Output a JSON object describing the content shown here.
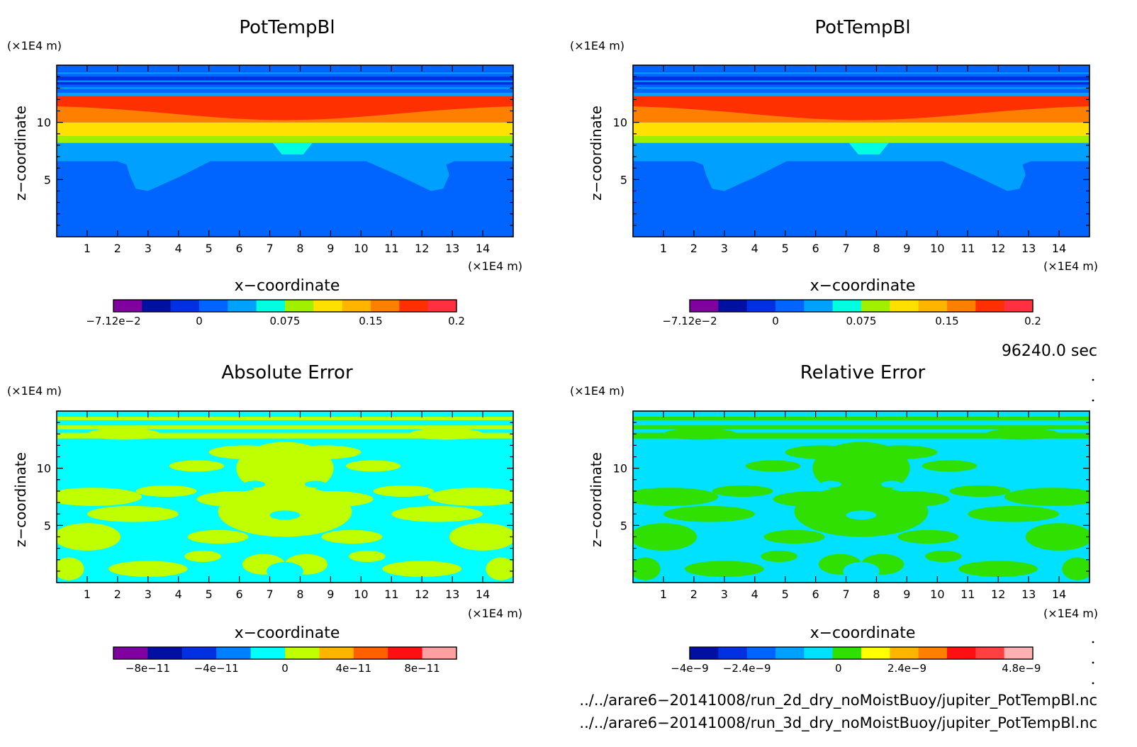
{
  "panels": [
    {
      "title": "PotTempBl",
      "ylabel": "z−coordinate",
      "xlabel": "x−coordinate",
      "unit_label": "(×1E4 m)",
      "x_ticks": [
        "1",
        "2",
        "3",
        "4",
        "5",
        "6",
        "7",
        "8",
        "9",
        "10",
        "11",
        "12",
        "13",
        "14"
      ],
      "y_ticks": [
        "5",
        "10"
      ],
      "colorbar": {
        "colors": [
          "#8000a0",
          "#0010a0",
          "#0030e0",
          "#0064ff",
          "#00a0ff",
          "#00ffe0",
          "#a0f000",
          "#ffe000",
          "#ffb400",
          "#ff8000",
          "#ff3000",
          "#ff3040"
        ],
        "labels": [
          "−7.12e−2",
          "0",
          "0.075",
          "0.15",
          "0.2"
        ]
      }
    },
    {
      "title": "PotTempBl",
      "ylabel": "z−coordinate",
      "xlabel": "x−coordinate",
      "unit_label": "(×1E4 m)",
      "x_ticks": [
        "1",
        "2",
        "3",
        "4",
        "5",
        "6",
        "7",
        "8",
        "9",
        "10",
        "11",
        "12",
        "13",
        "14"
      ],
      "y_ticks": [
        "5",
        "10"
      ],
      "colorbar": {
        "colors": [
          "#8000a0",
          "#0010a0",
          "#0030e0",
          "#0064ff",
          "#00a0ff",
          "#00ffe0",
          "#a0f000",
          "#ffe000",
          "#ffb400",
          "#ff8000",
          "#ff3000",
          "#ff3040"
        ],
        "labels": [
          "−7.12e−2",
          "0",
          "0.075",
          "0.15",
          "0.2"
        ]
      }
    },
    {
      "title": "Absolute Error",
      "ylabel": "z−coordinate",
      "xlabel": "x−coordinate",
      "unit_label": "(×1E4 m)",
      "x_ticks": [
        "1",
        "2",
        "3",
        "4",
        "5",
        "6",
        "7",
        "8",
        "9",
        "10",
        "11",
        "12",
        "13",
        "14"
      ],
      "y_ticks": [
        "5",
        "10"
      ],
      "colorbar": {
        "colors": [
          "#8000a0",
          "#0010a0",
          "#0030e0",
          "#0080ff",
          "#00ffff",
          "#c0ff00",
          "#ffb400",
          "#ff6000",
          "#ff1010",
          "#ffa0a0"
        ],
        "labels": [
          "−8e−11",
          "−4e−11",
          "0",
          "4e−11",
          "8e−11"
        ]
      }
    },
    {
      "title": "Relative Error",
      "ylabel": "z−coordinate",
      "xlabel": "x−coordinate",
      "unit_label": "(×1E4 m)",
      "x_ticks": [
        "1",
        "2",
        "3",
        "4",
        "5",
        "6",
        "7",
        "8",
        "9",
        "10",
        "11",
        "12",
        "13",
        "14"
      ],
      "y_ticks": [
        "5",
        "10"
      ],
      "colorbar": {
        "colors": [
          "#0010a0",
          "#0030e0",
          "#0064ff",
          "#00a0ff",
          "#00e0ff",
          "#30e000",
          "#ffff00",
          "#ffb400",
          "#ff8000",
          "#ff1010",
          "#ff4040",
          "#ffb0b0"
        ],
        "labels": [
          "−4e−9",
          "−2.4e−9",
          "0",
          "2.4e−9",
          "4.8e−9"
        ]
      }
    }
  ],
  "chart_data": {
    "type": "heatmap",
    "x_range": [
      0,
      15
    ],
    "y_range": [
      0,
      15
    ],
    "colors": {
      "pt_base": "#0064ff",
      "pt_light": "#00a0ff",
      "pt_cyan": "#00ffe0",
      "pt_lime": "#a0f000",
      "pt_yellow": "#ffe000",
      "pt_orange": "#ff8000",
      "pt_red": "#ff3000",
      "pt_blue": "#0030e0",
      "abs_cyan": "#00ffff",
      "abs_lime": "#c0ff00",
      "rel_cyan": "#00e0ff",
      "rel_green": "#30e000"
    }
  },
  "time_label": "96240.0 sec",
  "files": [
    "../../arare6−20141008/run_2d_dry_noMoistBuoy/jupiter_PotTempBl.nc",
    "../../arare6−20141008/run_3d_dry_noMoistBuoy/jupiter_PotTempBl.nc"
  ]
}
